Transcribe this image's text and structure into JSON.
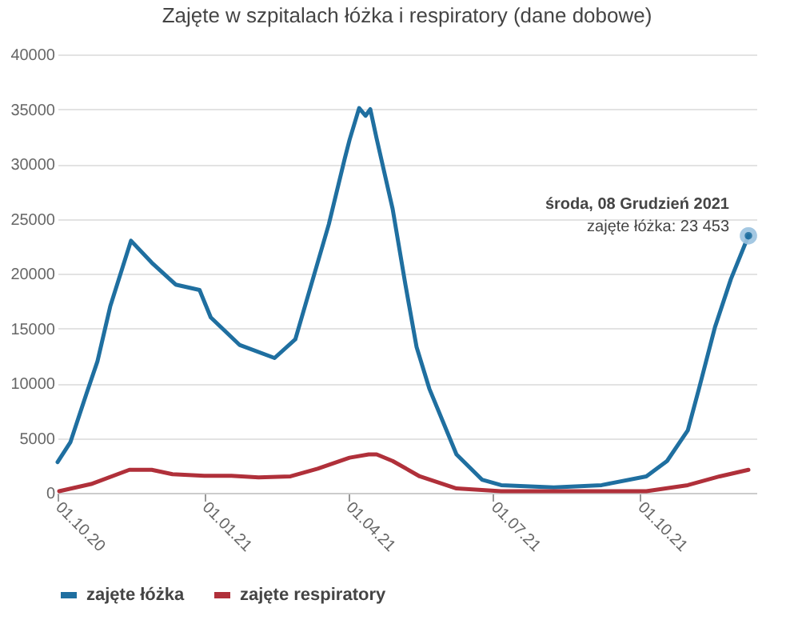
{
  "chart_data": {
    "type": "line",
    "title": "Zajęte w szpitalach łóżka i respiratory (dane dobowe)",
    "xlim": [
      "2020-10-01",
      "2021-12-13"
    ],
    "xticks": [
      {
        "value": "2020-10-01",
        "label": "01.10.20"
      },
      {
        "value": "2021-01-01",
        "label": "01.01.21"
      },
      {
        "value": "2021-04-01",
        "label": "01.04.21"
      },
      {
        "value": "2021-07-01",
        "label": "01.07.21"
      },
      {
        "value": "2021-10-01",
        "label": "01.10.21"
      }
    ],
    "ylim": [
      0,
      40000
    ],
    "yticks": [
      0,
      5000,
      10000,
      15000,
      20000,
      25000,
      30000,
      35000,
      40000
    ],
    "grid": "y",
    "legend": "bottom",
    "series": [
      {
        "name": "zajęte łóżka",
        "color": "#1f6fa0",
        "x": [
          "2020-10-01",
          "2020-10-09",
          "2020-10-19",
          "2020-10-26",
          "2020-11-03",
          "2020-11-16",
          "2020-11-29",
          "2020-12-14",
          "2020-12-29",
          "2021-01-05",
          "2021-01-23",
          "2021-02-14",
          "2021-02-27",
          "2021-03-07",
          "2021-03-20",
          "2021-03-30",
          "2021-04-02",
          "2021-04-08",
          "2021-04-12",
          "2021-04-15",
          "2021-04-19",
          "2021-04-29",
          "2021-05-07",
          "2021-05-14",
          "2021-05-22",
          "2021-06-08",
          "2021-06-24",
          "2021-07-06",
          "2021-08-08",
          "2021-09-07",
          "2021-10-05",
          "2021-10-18",
          "2021-10-31",
          "2021-11-07",
          "2021-11-17",
          "2021-11-27",
          "2021-12-08"
        ],
        "values": [
          2800,
          4600,
          9000,
          12000,
          17000,
          23000,
          21000,
          19000,
          18500,
          16000,
          13500,
          12300,
          14000,
          18000,
          24500,
          30500,
          32200,
          35100,
          34400,
          35000,
          32300,
          25900,
          19000,
          13300,
          9500,
          3500,
          1200,
          700,
          500,
          700,
          1500,
          2900,
          5700,
          9500,
          15100,
          19500,
          23453
        ]
      },
      {
        "name": "zajęte respiratory",
        "color": "#b0303a",
        "x": [
          "2020-10-02",
          "2020-10-22",
          "2020-11-15",
          "2020-11-29",
          "2020-12-12",
          "2021-01-01",
          "2021-01-18",
          "2021-02-04",
          "2021-02-24",
          "2021-03-13",
          "2021-04-02",
          "2021-04-14",
          "2021-04-19",
          "2021-04-29",
          "2021-05-16",
          "2021-06-08",
          "2021-07-06",
          "2021-10-05",
          "2021-10-31",
          "2021-11-20",
          "2021-12-08"
        ],
        "values": [
          150,
          800,
          2100,
          2100,
          1700,
          1550,
          1550,
          1400,
          1500,
          2200,
          3200,
          3500,
          3500,
          2900,
          1500,
          400,
          150,
          150,
          700,
          1500,
          2100
        ]
      }
    ],
    "annotations": [
      {
        "text": "środa, 08 Grudzień 2021",
        "x": "2021-12-08",
        "y": 23453
      },
      {
        "text": "zajęte łóżka: 23 453",
        "x": "2021-12-08",
        "y": 23453
      }
    ]
  }
}
